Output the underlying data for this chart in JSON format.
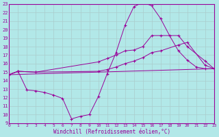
{
  "xlabel": "Windchill (Refroidissement éolien,°C)",
  "xlim": [
    0,
    23
  ],
  "ylim": [
    9,
    23
  ],
  "xticks": [
    0,
    1,
    2,
    3,
    4,
    5,
    6,
    7,
    8,
    9,
    10,
    11,
    12,
    13,
    14,
    15,
    16,
    17,
    18,
    19,
    20,
    21,
    22,
    23
  ],
  "yticks": [
    9,
    10,
    11,
    12,
    13,
    14,
    15,
    16,
    17,
    18,
    19,
    20,
    21,
    22,
    23
  ],
  "bg_color": "#b2e8e8",
  "line_color": "#990099",
  "grid_color": "#aacccc",
  "line1_x": [
    0,
    1,
    3,
    10,
    11,
    12,
    13,
    14,
    15,
    16,
    17,
    19,
    20,
    22,
    23
  ],
  "line1_y": [
    14.7,
    15.1,
    15.0,
    16.2,
    16.6,
    17.0,
    17.5,
    17.6,
    18.0,
    19.3,
    19.3,
    19.3,
    18.0,
    16.3,
    15.4
  ],
  "line2_x": [
    0,
    1,
    3,
    10,
    11,
    12,
    13,
    14,
    15,
    16,
    17,
    19,
    20,
    22,
    23
  ],
  "line2_y": [
    14.7,
    15.1,
    15.0,
    15.1,
    15.3,
    15.6,
    16.0,
    16.3,
    16.7,
    17.3,
    17.5,
    18.2,
    18.5,
    15.8,
    15.4
  ],
  "line3_x": [
    0,
    1,
    2,
    3,
    4,
    5,
    6,
    7,
    8,
    9,
    10,
    11,
    12,
    13,
    14,
    15,
    16,
    17,
    18,
    19,
    20,
    21,
    22,
    23
  ],
  "line3_y": [
    14.7,
    15.1,
    12.9,
    12.8,
    12.6,
    12.3,
    11.9,
    9.5,
    9.8,
    10.0,
    12.1,
    14.8,
    17.3,
    20.5,
    22.7,
    23.2,
    22.8,
    21.3,
    19.3,
    17.5,
    16.4,
    15.6,
    15.4,
    15.4
  ],
  "line4_x": [
    0,
    23
  ],
  "line4_y": [
    14.7,
    15.4
  ]
}
